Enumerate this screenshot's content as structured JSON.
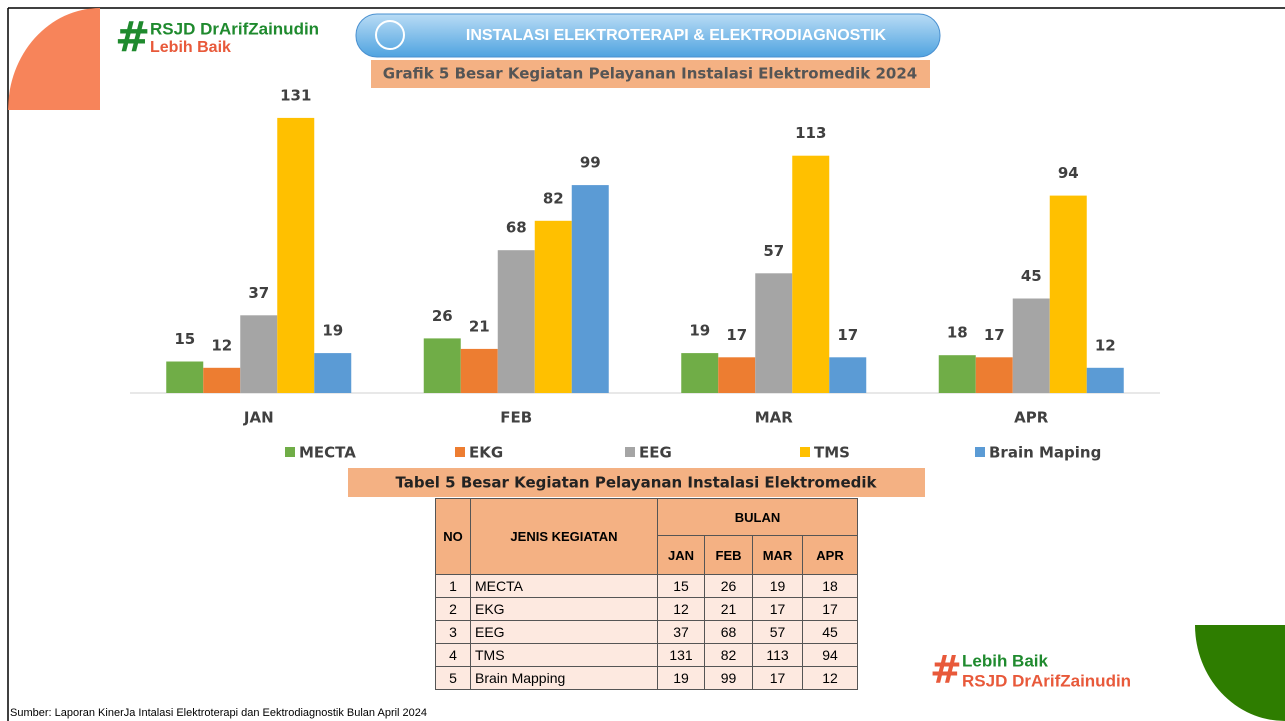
{
  "header": {
    "logo_hash": "#",
    "logo_name": "RSJD DrArifZainudin",
    "logo_tagline": "Lebih Baik",
    "banner": "INSTALASI ELEKTROTERAPI & ELEKTRODIAGNOSTIK"
  },
  "chart_data": {
    "type": "bar",
    "title": "Grafik 5 Besar Kegiatan Pelayanan Instalasi Elektromedik 2024",
    "categories": [
      "JAN",
      "FEB",
      "MAR",
      "APR"
    ],
    "series": [
      {
        "name": "MECTA",
        "color": "#70ad47",
        "values": [
          15,
          26,
          19,
          18
        ]
      },
      {
        "name": "EKG",
        "color": "#ed7d31",
        "values": [
          12,
          21,
          17,
          17
        ]
      },
      {
        "name": "EEG",
        "color": "#a5a5a5",
        "values": [
          37,
          68,
          57,
          45
        ]
      },
      {
        "name": "TMS",
        "color": "#ffc000",
        "values": [
          131,
          82,
          113,
          94
        ]
      },
      {
        "name": "Brain Maping",
        "color": "#5b9bd5",
        "values": [
          19,
          99,
          17,
          12
        ]
      }
    ],
    "ylim": [
      0,
      140
    ],
    "legend": "bottom"
  },
  "table": {
    "title": "Tabel 5 Besar Kegiatan Pelayanan Instalasi Elektromedik",
    "header": {
      "no": "NO",
      "name": "JENIS KEGIATAN",
      "group": "BULAN",
      "months": [
        "JAN",
        "FEB",
        "MAR",
        "APR"
      ]
    },
    "rows": [
      [
        1,
        "MECTA",
        15,
        26,
        19,
        18
      ],
      [
        2,
        "EKG",
        12,
        21,
        17,
        17
      ],
      [
        3,
        "EEG",
        37,
        68,
        57,
        45
      ],
      [
        4,
        "TMS",
        131,
        82,
        113,
        94
      ],
      [
        5,
        "Brain Mapping",
        19,
        99,
        17,
        12
      ]
    ]
  },
  "footer_logo": {
    "hash": "#",
    "tagline": "Lebih Baik",
    "name": "RSJD DrArifZainudin"
  },
  "source": "Sumber: Laporan KinerJa Intalasi Elektroterapi dan Eektrodiagnostik  Bulan April 2024"
}
